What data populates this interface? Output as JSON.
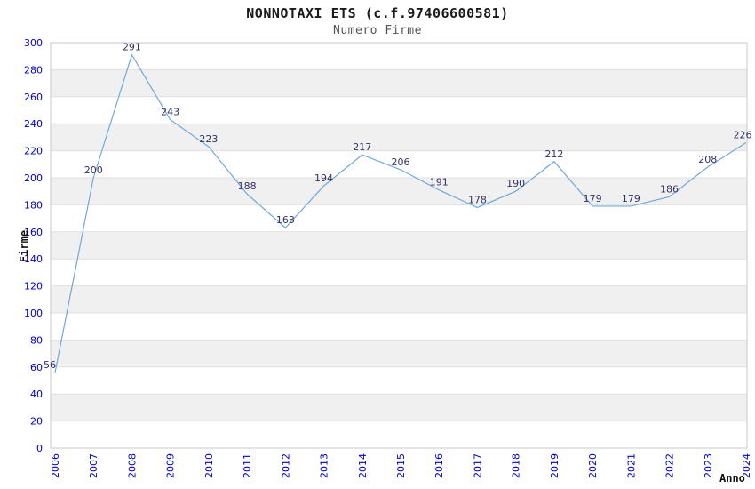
{
  "header": {
    "title": "NONNOTAXI ETS (c.f.97406600581)",
    "subtitle": "Numero Firme"
  },
  "chart_data": {
    "type": "line",
    "title": "NONNOTAXI ETS (c.f.97406600581)",
    "subtitle": "Numero Firme",
    "xlabel": "Anno",
    "ylabel": "Firme",
    "categories": [
      "2006",
      "2007",
      "2008",
      "2009",
      "2010",
      "2011",
      "2012",
      "2013",
      "2014",
      "2015",
      "2016",
      "2017",
      "2018",
      "2019",
      "2020",
      "2021",
      "2022",
      "2023",
      "2024"
    ],
    "values": [
      56,
      200,
      291,
      243,
      223,
      188,
      163,
      194,
      217,
      206,
      191,
      178,
      190,
      212,
      179,
      179,
      186,
      208,
      226
    ],
    "ylim": [
      0,
      300
    ],
    "ytick_step": 20,
    "yticks": [
      0,
      20,
      40,
      60,
      80,
      100,
      120,
      140,
      160,
      180,
      200,
      220,
      240,
      260,
      280,
      300
    ],
    "grid": "horizontal",
    "bands": "alternating-horizontal",
    "legend": "none",
    "data_labels": "visible",
    "colors": {
      "line": "#6fa8dc",
      "tick_label": "#0000cc",
      "data_label": "#333366",
      "band": "#f0f0f0",
      "grid": "#e0e0e0",
      "border": "#c9c9c9",
      "title": "#1a1a1a",
      "subtitle": "#555555",
      "axis_label": "#111111"
    }
  }
}
